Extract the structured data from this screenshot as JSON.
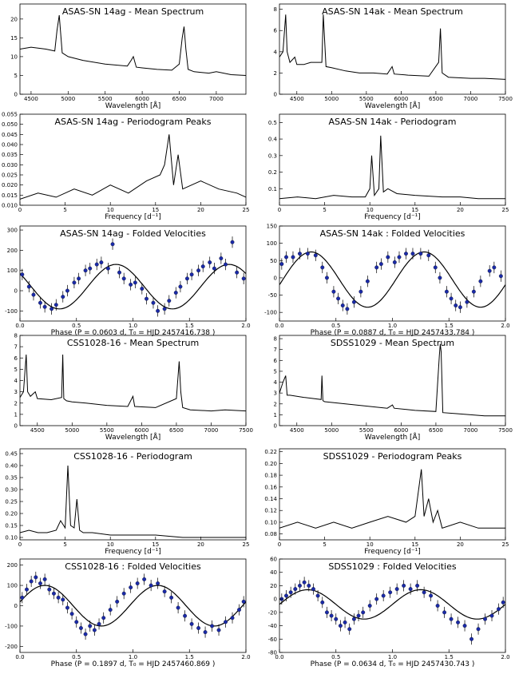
{
  "chart_data": [
    {
      "id": "p0",
      "type": "line",
      "title": "ASAS-SN 14ag - Mean Spectrum",
      "xlabel": "Wavelength [Å]",
      "xlim": [
        4350,
        7400
      ],
      "ylim": [
        0,
        24
      ],
      "xticks": [
        4500,
        5000,
        5500,
        6000,
        6500,
        7000
      ],
      "yticks": [
        0,
        5,
        10,
        15,
        20
      ],
      "series": [
        {
          "name": "spectrum",
          "x": [
            4350,
            4500,
            4700,
            4820,
            4850,
            4880,
            4920,
            5000,
            5200,
            5500,
            5800,
            5850,
            5880,
            5920,
            6000,
            6200,
            6400,
            6500,
            6540,
            6565,
            6590,
            6620,
            6700,
            6900,
            7000,
            7200,
            7400
          ],
          "y": [
            12,
            12.5,
            12,
            11.5,
            17,
            21,
            11,
            10,
            9,
            8,
            7.5,
            9,
            10,
            7.2,
            7,
            6.6,
            6.4,
            8,
            15,
            18,
            12,
            6.6,
            6,
            5.6,
            6,
            5.2,
            5
          ]
        }
      ]
    },
    {
      "id": "p1",
      "type": "line",
      "title": "ASAS-SN 14ak - Mean Spectrum",
      "xlabel": "Wavelength [Å]",
      "xlim": [
        4250,
        7500
      ],
      "ylim": [
        0,
        8.5
      ],
      "xticks": [
        4500,
        5000,
        5500,
        6000,
        6500,
        7000,
        7500
      ],
      "yticks": [
        0,
        2,
        4,
        6,
        8
      ],
      "series": [
        {
          "name": "spectrum",
          "x": [
            4250,
            4300,
            4340,
            4360,
            4400,
            4470,
            4500,
            4600,
            4700,
            4860,
            4880,
            4920,
            5000,
            5200,
            5400,
            5600,
            5800,
            5870,
            5900,
            6100,
            6400,
            6540,
            6565,
            6590,
            6680,
            7000,
            7200,
            7500
          ],
          "y": [
            3.5,
            4,
            7.5,
            4,
            3,
            3.5,
            2.8,
            2.8,
            3,
            3,
            7.5,
            2.6,
            2.5,
            2.2,
            2,
            2,
            1.9,
            2.6,
            1.9,
            1.8,
            1.7,
            3,
            6.2,
            2,
            1.6,
            1.5,
            1.5,
            1.4
          ]
        }
      ]
    },
    {
      "id": "p2",
      "type": "line",
      "title": "ASAS-SN 14ag - Periodogram Peaks",
      "xlabel": "Frequency [d⁻¹]",
      "xlim": [
        0,
        25
      ],
      "ylim": [
        0.01,
        0.055
      ],
      "xticks": [
        0,
        5,
        10,
        15,
        20,
        25
      ],
      "yticks": [
        0.01,
        0.015,
        0.02,
        0.025,
        0.03,
        0.035,
        0.04,
        0.045,
        0.05,
        0.055
      ],
      "series": [
        {
          "name": "power",
          "x": [
            0,
            2,
            4,
            6,
            8,
            10,
            12,
            14,
            15.5,
            16,
            16.5,
            17,
            17.5,
            18,
            20,
            22,
            24,
            25
          ],
          "y": [
            0.013,
            0.016,
            0.014,
            0.018,
            0.015,
            0.02,
            0.016,
            0.022,
            0.025,
            0.03,
            0.045,
            0.02,
            0.035,
            0.018,
            0.022,
            0.018,
            0.016,
            0.014
          ]
        }
      ]
    },
    {
      "id": "p3",
      "type": "line",
      "title": "ASAS-SN 14ak - Periodogram",
      "xlabel": "Frequency [d⁻¹]",
      "xlim": [
        0,
        25
      ],
      "ylim": [
        0,
        0.55
      ],
      "xticks": [
        0,
        5,
        10,
        15,
        20,
        25
      ],
      "yticks": [
        0.1,
        0.2,
        0.3,
        0.4,
        0.5
      ],
      "series": [
        {
          "name": "power",
          "x": [
            0,
            2,
            4,
            6,
            8,
            9.5,
            10,
            10.2,
            10.5,
            11,
            11.2,
            11.5,
            12,
            13,
            15,
            18,
            20,
            22,
            25
          ],
          "y": [
            0.04,
            0.05,
            0.04,
            0.06,
            0.05,
            0.05,
            0.1,
            0.3,
            0.06,
            0.1,
            0.42,
            0.08,
            0.1,
            0.07,
            0.06,
            0.05,
            0.05,
            0.04,
            0.04
          ]
        }
      ]
    },
    {
      "id": "p4",
      "type": "scatter",
      "title": "ASAS-SN 14ag - Folded Velocities",
      "xlabel": "Phase (P =  0.0603 d,  T₀ = HJD 2457416.738 )",
      "xlim": [
        0,
        2
      ],
      "ylim": [
        -150,
        320
      ],
      "xticks": [
        0,
        0.5,
        1.0,
        1.5,
        2.0
      ],
      "xtick_labels": [
        "0.0",
        "0.5",
        "1.0",
        "1.5",
        "2.0"
      ],
      "yticks": [
        -100,
        0,
        100,
        200,
        300
      ],
      "fit": {
        "type": "sine",
        "offset": 20,
        "amplitude": 110,
        "phase_of_max": 0.85
      },
      "series": [
        {
          "name": "velocities",
          "x": [
            0.02,
            0.08,
            0.12,
            0.18,
            0.22,
            0.28,
            0.32,
            0.38,
            0.42,
            0.48,
            0.52,
            0.58,
            0.62,
            0.68,
            0.72,
            0.78,
            0.82,
            0.88,
            0.92,
            0.98,
            1.02,
            1.08,
            1.12,
            1.18,
            1.22,
            1.28,
            1.32,
            1.38,
            1.42,
            1.48,
            1.52,
            1.58,
            1.62,
            1.68,
            1.72,
            1.78,
            1.82,
            1.88,
            1.92,
            1.98
          ],
          "y": [
            80,
            20,
            -20,
            -60,
            -80,
            -90,
            -70,
            -30,
            0,
            40,
            60,
            100,
            110,
            130,
            140,
            110,
            230,
            90,
            60,
            30,
            40,
            10,
            -40,
            -60,
            -100,
            -90,
            -50,
            -10,
            20,
            60,
            80,
            100,
            120,
            140,
            110,
            160,
            130,
            240,
            90,
            60
          ]
        }
      ]
    },
    {
      "id": "p5",
      "type": "scatter",
      "title": "ASAS-SN 14ak : Folded Velocities",
      "xlabel": "Phase (P =  0.0887 d,  T₀ = HJD 2457433.784 )",
      "xlim": [
        0,
        2
      ],
      "ylim": [
        -125,
        150
      ],
      "xticks": [
        0,
        0.5,
        1.0,
        1.5,
        2.0
      ],
      "xtick_labels": [
        "0.0",
        "0.5",
        "1.0",
        "1.5",
        "2.0"
      ],
      "yticks": [
        -100,
        -50,
        0,
        50,
        100,
        150
      ],
      "fit": {
        "type": "sine",
        "offset": -5,
        "amplitude": 80,
        "phase_of_max": 0.28
      },
      "series": [
        {
          "name": "velocities",
          "x": [
            0.02,
            0.06,
            0.12,
            0.18,
            0.25,
            0.32,
            0.38,
            0.42,
            0.48,
            0.52,
            0.56,
            0.6,
            0.66,
            0.72,
            0.78,
            0.86,
            0.9,
            0.96,
            1.02,
            1.06,
            1.12,
            1.18,
            1.25,
            1.32,
            1.38,
            1.42,
            1.48,
            1.52,
            1.56,
            1.6,
            1.66,
            1.72,
            1.78,
            1.86,
            1.9,
            1.96
          ],
          "y": [
            40,
            60,
            60,
            70,
            70,
            65,
            30,
            0,
            -40,
            -60,
            -80,
            -90,
            -70,
            -40,
            -10,
            30,
            40,
            60,
            45,
            60,
            70,
            70,
            70,
            65,
            30,
            0,
            -40,
            -60,
            -80,
            -85,
            -70,
            -40,
            -10,
            20,
            30,
            5
          ]
        }
      ]
    },
    {
      "id": "p6",
      "type": "line",
      "title": "CSS1028-16 - Mean Spectrum",
      "xlabel": "Wavelength [Å]",
      "xlim": [
        4250,
        7500
      ],
      "ylim": [
        0,
        8
      ],
      "xticks": [
        4500,
        5000,
        5500,
        6000,
        6500,
        7000,
        7500
      ],
      "yticks": [
        0,
        1,
        2,
        3,
        4,
        5,
        6,
        7,
        8
      ],
      "series": [
        {
          "name": "spectrum",
          "x": [
            4250,
            4300,
            4340,
            4360,
            4400,
            4470,
            4500,
            4700,
            4850,
            4865,
            4880,
            4920,
            5000,
            5200,
            5500,
            5800,
            5875,
            5900,
            6200,
            6500,
            6540,
            6563,
            6590,
            6700,
            7000,
            7200,
            7500
          ],
          "y": [
            2.5,
            3,
            6.3,
            3,
            2.6,
            3,
            2.4,
            2.3,
            2.5,
            6.3,
            2.4,
            2.2,
            2.1,
            2,
            1.8,
            1.7,
            2.6,
            1.7,
            1.6,
            2.4,
            5.7,
            3,
            1.6,
            1.4,
            1.3,
            1.4,
            1.3
          ]
        }
      ]
    },
    {
      "id": "p7",
      "type": "line",
      "title": "SDSS1029 - Mean Spectrum",
      "xlabel": "Wavelength [Å]",
      "xlim": [
        4250,
        7500
      ],
      "ylim": [
        0,
        8.3
      ],
      "xticks": [
        4500,
        5000,
        5500,
        6000,
        6500,
        7000,
        7500
      ],
      "yticks": [
        0,
        1,
        2,
        3,
        4,
        5,
        6,
        7,
        8
      ],
      "series": [
        {
          "name": "spectrum",
          "x": [
            4250,
            4300,
            4340,
            4360,
            4400,
            4600,
            4850,
            4861,
            4875,
            4900,
            5200,
            5500,
            5800,
            5875,
            5900,
            6200,
            6500,
            6550,
            6563,
            6575,
            6600,
            6800,
            7000,
            7200,
            7500
          ],
          "y": [
            3,
            4,
            4.6,
            2.8,
            2.8,
            2.6,
            2.4,
            4.6,
            2.3,
            2.2,
            2,
            1.8,
            1.6,
            1.9,
            1.6,
            1.4,
            1.3,
            6.5,
            7.5,
            6.8,
            1.2,
            1.1,
            1,
            0.9,
            0.9
          ]
        }
      ]
    },
    {
      "id": "p8",
      "type": "line",
      "title": "CSS1028-16 - Periodogram",
      "xlabel": "Frequency [d⁻¹]",
      "xlim": [
        0,
        25
      ],
      "ylim": [
        0.09,
        0.47
      ],
      "xticks": [
        0,
        5,
        10,
        15,
        20,
        25
      ],
      "yticks": [
        0.1,
        0.15,
        0.2,
        0.25,
        0.3,
        0.35,
        0.4,
        0.45
      ],
      "series": [
        {
          "name": "power",
          "x": [
            0,
            1,
            2,
            3,
            4,
            4.5,
            5,
            5.3,
            5.6,
            6,
            6.3,
            6.6,
            7,
            8,
            10,
            12,
            15,
            18,
            20,
            22,
            25
          ],
          "y": [
            0.12,
            0.13,
            0.12,
            0.12,
            0.13,
            0.17,
            0.14,
            0.4,
            0.15,
            0.14,
            0.26,
            0.13,
            0.12,
            0.12,
            0.11,
            0.11,
            0.11,
            0.1,
            0.1,
            0.1,
            0.1
          ]
        }
      ]
    },
    {
      "id": "p9",
      "type": "line",
      "title": "SDSS1029 - Periodogram Peaks",
      "xlabel": "Frequency [d⁻¹]",
      "xlim": [
        0,
        25
      ],
      "ylim": [
        0.07,
        0.225
      ],
      "xticks": [
        0,
        5,
        10,
        15,
        20,
        25
      ],
      "yticks": [
        0.08,
        0.1,
        0.12,
        0.14,
        0.16,
        0.18,
        0.2,
        0.22
      ],
      "series": [
        {
          "name": "power",
          "x": [
            0,
            2,
            4,
            6,
            8,
            10,
            12,
            14,
            15,
            15.7,
            16,
            16.5,
            17,
            17.5,
            18,
            20,
            22,
            24,
            25
          ],
          "y": [
            0.09,
            0.1,
            0.09,
            0.1,
            0.09,
            0.1,
            0.11,
            0.1,
            0.11,
            0.19,
            0.11,
            0.14,
            0.1,
            0.12,
            0.09,
            0.1,
            0.09,
            0.09,
            0.09
          ]
        }
      ]
    },
    {
      "id": "p10",
      "type": "scatter",
      "title": "CSS1028-16 : Folded Velocities",
      "xlabel": "Phase (P =  0.1897 d,  T₀ = HJD 2457460.869 )",
      "xlim": [
        0,
        2
      ],
      "ylim": [
        -230,
        230
      ],
      "xticks": [
        0,
        0.5,
        1.0,
        1.5,
        2.0
      ],
      "xtick_labels": [
        "0.0",
        "0.5",
        "1.0",
        "1.5",
        "2.0"
      ],
      "yticks": [
        -200,
        -100,
        0,
        100,
        200
      ],
      "fit": {
        "type": "sine",
        "offset": 0,
        "amplitude": 100,
        "phase_of_max": 0.22
      },
      "series": [
        {
          "name": "velocities",
          "x": [
            0.02,
            0.06,
            0.1,
            0.14,
            0.18,
            0.22,
            0.26,
            0.3,
            0.34,
            0.38,
            0.42,
            0.46,
            0.5,
            0.54,
            0.58,
            0.62,
            0.66,
            0.7,
            0.74,
            0.8,
            0.86,
            0.92,
            0.98,
            1.04,
            1.1,
            1.16,
            1.22,
            1.28,
            1.34,
            1.4,
            1.46,
            1.52,
            1.58,
            1.64,
            1.7,
            1.76,
            1.82,
            1.88,
            1.94,
            1.98
          ],
          "y": [
            40,
            80,
            120,
            140,
            110,
            130,
            80,
            60,
            40,
            30,
            -10,
            -40,
            -80,
            -110,
            -140,
            -100,
            -120,
            -90,
            -60,
            -20,
            20,
            60,
            90,
            110,
            130,
            100,
            110,
            70,
            40,
            -10,
            -50,
            -90,
            -110,
            -130,
            -100,
            -120,
            -80,
            -60,
            -20,
            20
          ]
        }
      ]
    },
    {
      "id": "p11",
      "type": "scatter",
      "title": "SDSS1029 : Folded Velocities",
      "xlabel": "Phase (P =  0.0634 d,  T₀ = HJD 2457430.743 )",
      "xlim": [
        0,
        2
      ],
      "ylim": [
        -80,
        60
      ],
      "xticks": [
        0,
        0.5,
        1.0,
        1.5,
        2.0
      ],
      "xtick_labels": [
        "0.0",
        "0.5",
        "1.0",
        "1.5",
        "2.0"
      ],
      "yticks": [
        -80,
        -60,
        -40,
        -20,
        0,
        20,
        40,
        60
      ],
      "fit": {
        "type": "sine",
        "offset": -8,
        "amplitude": 22,
        "phase_of_max": 0.25
      },
      "series": [
        {
          "name": "velocities",
          "x": [
            0.02,
            0.06,
            0.1,
            0.14,
            0.18,
            0.22,
            0.26,
            0.3,
            0.34,
            0.38,
            0.42,
            0.46,
            0.5,
            0.54,
            0.58,
            0.62,
            0.66,
            0.7,
            0.74,
            0.8,
            0.86,
            0.92,
            0.98,
            1.04,
            1.1,
            1.16,
            1.22,
            1.28,
            1.34,
            1.4,
            1.46,
            1.52,
            1.58,
            1.64,
            1.7,
            1.76,
            1.82,
            1.88,
            1.94,
            1.98
          ],
          "y": [
            0,
            5,
            10,
            15,
            20,
            25,
            20,
            15,
            5,
            -5,
            -20,
            -25,
            -30,
            -40,
            -35,
            -45,
            -30,
            -25,
            -20,
            -10,
            0,
            5,
            10,
            15,
            20,
            15,
            20,
            10,
            5,
            -10,
            -20,
            -30,
            -35,
            -40,
            -60,
            -45,
            -30,
            -25,
            -15,
            -5
          ]
        }
      ]
    }
  ]
}
